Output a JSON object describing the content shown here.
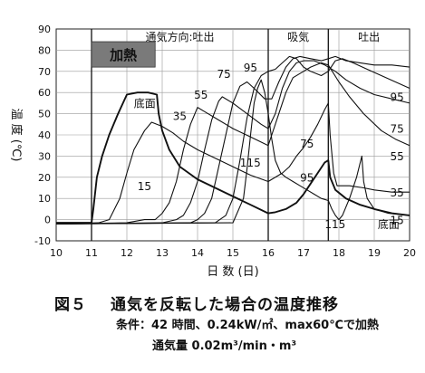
{
  "chart_data": {
    "type": "line",
    "xlabel": "日 数 (日)",
    "ylabel": "温 度 (℃)",
    "xlim": [
      10,
      20
    ],
    "ylim": [
      -10,
      90
    ],
    "x_ticks": [
      "10",
      "11",
      "12",
      "13",
      "14",
      "15",
      "16",
      "17",
      "18",
      "19",
      "20"
    ],
    "y_ticks": [
      "-10",
      "0",
      "10",
      "20",
      "30",
      "40",
      "50",
      "60",
      "70",
      "80",
      "90"
    ],
    "grid": true,
    "phases": [
      {
        "label": "通気方向:吐出",
        "start": 11,
        "end": 16
      },
      {
        "label": "吸気",
        "start": 16,
        "end": 17.7
      },
      {
        "label": "吐出",
        "start": 17.7,
        "end": 20
      }
    ],
    "heating": {
      "label": "加熱",
      "start": 11,
      "end": 12.8
    },
    "series": [
      {
        "name": "底面",
        "points": [
          [
            10,
            -1.5
          ],
          [
            11,
            -1.5
          ],
          [
            11.05,
            5
          ],
          [
            11.15,
            20
          ],
          [
            11.3,
            30
          ],
          [
            11.5,
            40
          ],
          [
            11.75,
            50
          ],
          [
            12,
            59
          ],
          [
            12.3,
            60
          ],
          [
            12.6,
            60
          ],
          [
            12.85,
            59
          ],
          [
            12.9,
            50
          ],
          [
            13,
            42
          ],
          [
            13.2,
            33
          ],
          [
            13.5,
            25
          ],
          [
            14,
            19
          ],
          [
            14.5,
            15
          ],
          [
            15,
            11
          ],
          [
            15.5,
            7
          ],
          [
            16,
            3
          ],
          [
            16.2,
            3.5
          ],
          [
            16.5,
            5
          ],
          [
            16.8,
            8
          ],
          [
            17,
            12
          ],
          [
            17.2,
            17
          ],
          [
            17.4,
            22
          ],
          [
            17.6,
            27
          ],
          [
            17.7,
            28
          ],
          [
            17.75,
            20
          ],
          [
            17.9,
            14
          ],
          [
            18.2,
            10
          ],
          [
            18.6,
            7
          ],
          [
            19,
            5
          ],
          [
            19.5,
            3
          ],
          [
            20,
            2
          ]
        ]
      },
      {
        "name": "15",
        "points": [
          [
            10,
            -2
          ],
          [
            11.2,
            -1.5
          ],
          [
            11.5,
            0
          ],
          [
            11.8,
            10
          ],
          [
            12,
            22
          ],
          [
            12.2,
            33
          ],
          [
            12.5,
            42
          ],
          [
            12.7,
            46
          ],
          [
            13,
            44
          ],
          [
            13.3,
            41
          ],
          [
            13.6,
            37
          ],
          [
            14,
            33
          ],
          [
            14.5,
            29
          ],
          [
            15,
            25
          ],
          [
            15.5,
            21
          ],
          [
            16,
            18
          ],
          [
            16.1,
            19
          ],
          [
            16.4,
            22
          ],
          [
            16.6,
            25
          ],
          [
            16.8,
            30
          ],
          [
            17,
            34
          ],
          [
            17.2,
            39
          ],
          [
            17.4,
            45
          ],
          [
            17.6,
            52
          ],
          [
            17.7,
            55
          ],
          [
            17.75,
            40
          ],
          [
            17.85,
            22
          ],
          [
            17.95,
            16
          ],
          [
            18.3,
            16
          ],
          [
            18.7,
            15
          ],
          [
            19,
            14
          ],
          [
            19.5,
            13
          ],
          [
            20,
            13
          ]
        ]
      },
      {
        "name": "35",
        "points": [
          [
            10,
            -2
          ],
          [
            12,
            -1.5
          ],
          [
            12.5,
            0
          ],
          [
            12.8,
            0
          ],
          [
            13,
            3
          ],
          [
            13.2,
            8
          ],
          [
            13.4,
            18
          ],
          [
            13.6,
            33
          ],
          [
            13.8,
            45
          ],
          [
            14,
            53
          ],
          [
            14.2,
            51
          ],
          [
            14.6,
            47
          ],
          [
            15,
            43
          ],
          [
            15.5,
            39
          ],
          [
            16,
            35
          ],
          [
            16.1,
            40
          ],
          [
            16.3,
            50
          ],
          [
            16.5,
            60
          ],
          [
            16.7,
            67
          ],
          [
            17,
            70
          ],
          [
            17.2,
            72
          ],
          [
            17.5,
            74
          ],
          [
            17.7,
            73
          ],
          [
            18,
            65
          ],
          [
            18.3,
            58
          ],
          [
            18.7,
            50
          ],
          [
            19.2,
            42
          ],
          [
            19.6,
            38
          ],
          [
            20,
            35
          ]
        ]
      },
      {
        "name": "55",
        "points": [
          [
            10,
            -2
          ],
          [
            13,
            -1.5
          ],
          [
            13.4,
            0
          ],
          [
            13.6,
            2
          ],
          [
            13.8,
            8
          ],
          [
            14,
            18
          ],
          [
            14.2,
            33
          ],
          [
            14.4,
            47
          ],
          [
            14.6,
            56
          ],
          [
            14.7,
            58
          ],
          [
            15,
            55
          ],
          [
            15.4,
            50
          ],
          [
            15.8,
            45
          ],
          [
            16,
            43
          ],
          [
            16.2,
            50
          ],
          [
            16.4,
            62
          ],
          [
            16.6,
            70
          ],
          [
            16.8,
            74
          ],
          [
            17,
            75
          ],
          [
            17.3,
            75
          ],
          [
            17.6,
            73
          ],
          [
            17.9,
            70
          ],
          [
            18.2,
            66
          ],
          [
            18.6,
            62
          ],
          [
            19,
            59
          ],
          [
            19.5,
            57
          ],
          [
            20,
            55
          ]
        ]
      },
      {
        "name": "75",
        "points": [
          [
            10,
            -2
          ],
          [
            13.8,
            -1.5
          ],
          [
            14,
            0
          ],
          [
            14.2,
            3
          ],
          [
            14.4,
            10
          ],
          [
            14.6,
            25
          ],
          [
            14.8,
            40
          ],
          [
            15,
            55
          ],
          [
            15.2,
            63
          ],
          [
            15.4,
            65
          ],
          [
            15.6,
            62
          ],
          [
            15.9,
            57
          ],
          [
            16.1,
            57
          ],
          [
            16.3,
            65
          ],
          [
            16.5,
            72
          ],
          [
            16.7,
            76
          ],
          [
            16.9,
            77
          ],
          [
            17.2,
            76
          ],
          [
            17.5,
            75
          ],
          [
            17.7,
            76
          ],
          [
            17.9,
            77
          ],
          [
            18.2,
            75
          ],
          [
            18.6,
            74
          ],
          [
            19,
            73
          ],
          [
            19.5,
            73
          ],
          [
            20,
            72
          ]
        ]
      },
      {
        "name": "95",
        "points": [
          [
            10,
            -2
          ],
          [
            14.5,
            -1.5
          ],
          [
            14.8,
            2
          ],
          [
            15,
            10
          ],
          [
            15.2,
            28
          ],
          [
            15.4,
            48
          ],
          [
            15.6,
            62
          ],
          [
            15.8,
            68
          ],
          [
            16,
            70
          ],
          [
            16.2,
            71
          ],
          [
            16.4,
            74
          ],
          [
            16.6,
            77
          ],
          [
            16.8,
            76
          ],
          [
            17,
            72
          ],
          [
            17.2,
            70
          ],
          [
            17.5,
            68
          ],
          [
            17.7,
            70
          ],
          [
            17.9,
            75
          ],
          [
            18.1,
            76
          ],
          [
            18.4,
            74
          ],
          [
            18.8,
            71
          ],
          [
            19.2,
            68
          ],
          [
            19.6,
            65
          ],
          [
            20,
            62
          ]
        ]
      },
      {
        "name": "115",
        "points": [
          [
            10,
            -2
          ],
          [
            15,
            -1.5
          ],
          [
            15.3,
            10
          ],
          [
            15.4,
            24
          ],
          [
            15.5,
            40
          ],
          [
            15.6,
            55
          ],
          [
            15.7,
            62
          ],
          [
            15.8,
            66
          ],
          [
            15.9,
            60
          ],
          [
            16,
            50
          ],
          [
            16.1,
            38
          ],
          [
            16.2,
            28
          ],
          [
            16.35,
            22
          ],
          [
            16.5,
            20
          ],
          [
            16.7,
            18
          ],
          [
            16.9,
            16
          ],
          [
            17.1,
            14
          ],
          [
            17.3,
            12
          ],
          [
            17.5,
            10
          ],
          [
            17.7,
            9
          ],
          [
            17.8,
            5
          ],
          [
            17.9,
            2
          ],
          [
            18,
            0
          ],
          [
            18.1,
            2
          ],
          [
            18.3,
            10
          ],
          [
            18.5,
            20
          ],
          [
            18.65,
            30
          ],
          [
            18.7,
            18
          ],
          [
            18.8,
            10
          ],
          [
            19,
            5
          ],
          [
            19.4,
            3
          ],
          [
            20,
            2
          ]
        ]
      }
    ],
    "series_labels": [
      {
        "text": "15",
        "x": 12.3,
        "y": 14
      },
      {
        "text": "35",
        "x": 13.3,
        "y": 47
      },
      {
        "text": "55",
        "x": 13.9,
        "y": 57
      },
      {
        "text": "75",
        "x": 14.55,
        "y": 67
      },
      {
        "text": "95",
        "x": 15.3,
        "y": 70
      },
      {
        "text": "底面",
        "x": 12.2,
        "y": 53
      },
      {
        "text": "115",
        "x": 15.2,
        "y": 25
      },
      {
        "text": "75",
        "x": 16.9,
        "y": 34
      },
      {
        "text": "95",
        "x": 16.9,
        "y": 18
      },
      {
        "text": "115",
        "x": 17.6,
        "y": -4
      },
      {
        "text": "95",
        "x": 19.45,
        "y": 56
      },
      {
        "text": "75",
        "x": 19.45,
        "y": 41
      },
      {
        "text": "55",
        "x": 19.45,
        "y": 28
      },
      {
        "text": "35",
        "x": 19.45,
        "y": 11
      },
      {
        "text": "15",
        "x": 19.45,
        "y": -2
      },
      {
        "text": "底面",
        "x": 19.1,
        "y": -4
      }
    ]
  },
  "caption": {
    "figure_number": "図５",
    "figure_title": "通気を反転した場合の温度推移",
    "conditions_line1": "条件：42 時間、0.24kW/㎡、max60℃で加熱",
    "conditions_line2": "通気量 0.02m³/min・m³"
  }
}
